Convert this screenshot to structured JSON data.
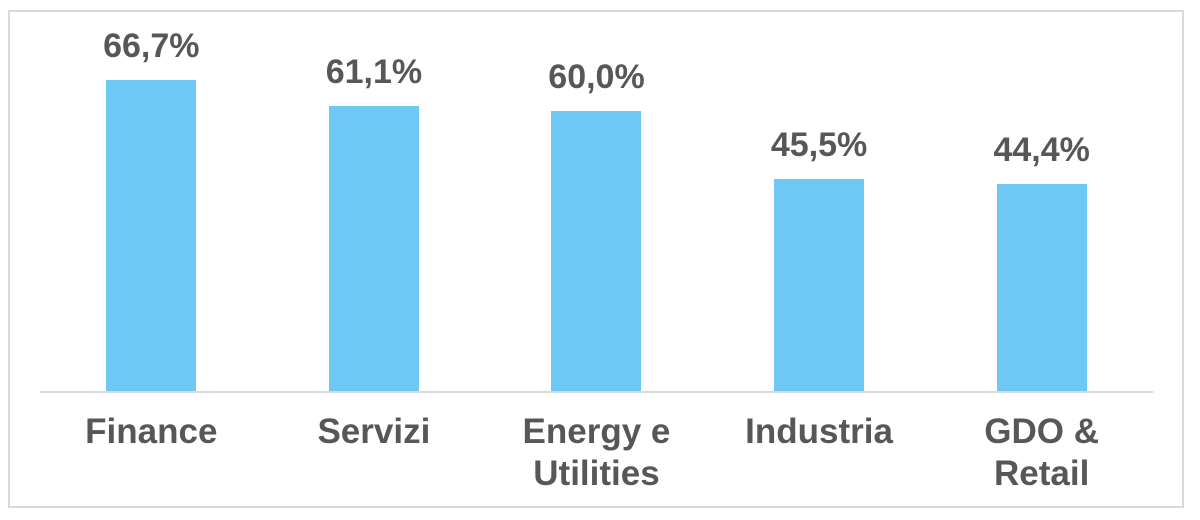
{
  "chart_data": {
    "type": "bar",
    "categories": [
      "Finance",
      "Servizi",
      "Energy e Utilities",
      "Industria",
      "GDO & Retail"
    ],
    "values": [
      66.7,
      61.1,
      60.0,
      45.5,
      44.4
    ],
    "value_labels": [
      "66,7%",
      "61,1%",
      "60,0%",
      "45,5%",
      "44,4%"
    ],
    "decimal_separator": ",",
    "unit": "%",
    "ylim": [
      0,
      70
    ],
    "grid": false,
    "legend": false,
    "bar_color": "#6DC8F5",
    "label_color": "#575757",
    "axis_color": "#D9D9D9",
    "frame_border_color": "#D9D9D9",
    "background_color": "#FFFFFF"
  }
}
